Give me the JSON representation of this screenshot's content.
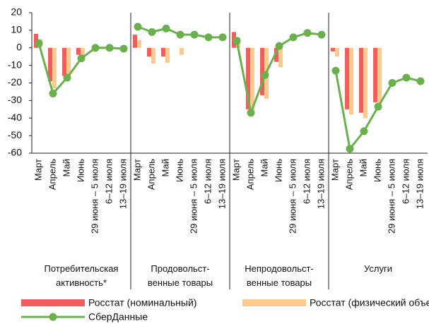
{
  "chart_data": {
    "type": "bar-line",
    "ylim": [
      -60,
      20
    ],
    "yticks": [
      20,
      10,
      0,
      -10,
      -20,
      -30,
      -40,
      -50,
      -60
    ],
    "groups": [
      {
        "label": "Потребительская\nактивность*",
        "categories": [
          "Март",
          "Апрель",
          "Май",
          "Июнь",
          "29 июня – 5 июля",
          "6–12 июля",
          "13–19 июля"
        ]
      },
      {
        "label": "Продовольст-\nвенные товары",
        "categories": [
          "Март",
          "Апрель",
          "Май",
          "Июнь",
          "29 июня – 5 июля",
          "6–12 июля",
          "13–19 июля"
        ]
      },
      {
        "label": "Непродовольст-\nвенные товары",
        "categories": [
          "Март",
          "Апрель",
          "Май",
          "Июнь",
          "29 июня – 5 июля",
          "6–12 июля",
          "13–19 июля"
        ]
      },
      {
        "label": "Услуги",
        "categories": [
          "Март",
          "Апрель",
          "Май",
          "Июнь",
          "29 июня – 5 июля",
          "6–12 июля",
          "13–19 июля"
        ]
      }
    ],
    "series": [
      {
        "name": "Росстат (номинальный)",
        "type": "bar",
        "color": "#f25c5c",
        "values": [
          [
            8,
            -19,
            -16,
            -4,
            null,
            null,
            null
          ],
          [
            7.5,
            -5,
            -5,
            0,
            null,
            null,
            null
          ],
          [
            9,
            -35,
            -27,
            -8,
            null,
            null,
            null
          ],
          [
            -2,
            -35,
            -37,
            -31,
            null,
            null,
            null
          ]
        ]
      },
      {
        "name": "Росстат (физический объем)",
        "type": "bar",
        "color": "#fdc98c",
        "values": [
          [
            5,
            -23,
            -18,
            -5,
            null,
            null,
            null
          ],
          [
            4.5,
            -9,
            -8.5,
            -4,
            null,
            null,
            null
          ],
          [
            6,
            -37,
            -29,
            -11,
            null,
            null,
            null
          ],
          [
            -5,
            -38,
            -40,
            -32,
            null,
            null,
            null
          ]
        ]
      },
      {
        "name": "СберДанные",
        "type": "line",
        "color": "#6ab04c",
        "values": [
          [
            2.5,
            -26,
            -17,
            -6,
            0,
            0,
            -0.5
          ],
          [
            12,
            9,
            11,
            7.5,
            7.5,
            6,
            6
          ],
          [
            4,
            -37,
            -15.5,
            1,
            6,
            8.5,
            7.5
          ],
          [
            -13,
            -57.5,
            -47.5,
            -33.5,
            -20,
            -17,
            -19
          ]
        ]
      }
    ]
  }
}
